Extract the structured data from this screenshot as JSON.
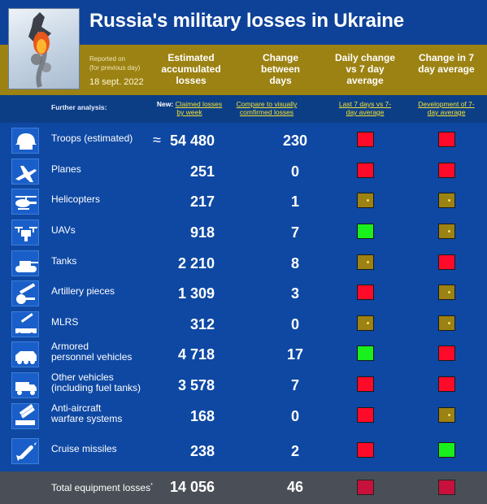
{
  "title": "Russia's military losses in Ukraine",
  "reported": {
    "line1": "Reported on",
    "line2": "(for previous day)",
    "date": "18 sept. 2022"
  },
  "columns": {
    "estimated": "Estimated accumulated losses",
    "change": "Change between days",
    "daily": "Daily change vs 7 day average",
    "change7": "Change in 7 day average"
  },
  "analysis": {
    "label": "Further analysis:",
    "new_prefix": "New:",
    "claimed": "Claimed losses by week",
    "compare": "Compare to visually comfirmed losses",
    "last7": "Last 7 days vs 7-day average",
    "development": "Development of 7-day average"
  },
  "status_colors": {
    "red": "#ff0a28",
    "green": "#19f01c",
    "neutral": "#9c8212",
    "crimson": "#c8103c"
  },
  "rows": [
    {
      "icon": "helmet-icon",
      "label": "Troops (estimated)",
      "approx": "≈",
      "value": "54 480",
      "change": "230",
      "daily": "red",
      "avg": "red"
    },
    {
      "icon": "jet-icon",
      "label": "Planes",
      "value": "251",
      "change": "0",
      "daily": "red",
      "avg": "red"
    },
    {
      "icon": "helicopter-icon",
      "label": "Helicopters",
      "value": "217",
      "change": "1",
      "daily": "neutral",
      "avg": "neutral"
    },
    {
      "icon": "drone-icon",
      "label": "UAVs",
      "value": "918",
      "change": "7",
      "daily": "green",
      "avg": "neutral"
    },
    {
      "icon": "tank-icon",
      "label": "Tanks",
      "value": "2 210",
      "change": "8",
      "daily": "neutral",
      "avg": "red"
    },
    {
      "icon": "artillery-icon",
      "label": "Artillery pieces",
      "value": "1 309",
      "change": "3",
      "daily": "red",
      "avg": "neutral"
    },
    {
      "icon": "rocket-launcher-icon",
      "label": "MLRS",
      "value": "312",
      "change": "0",
      "daily": "neutral",
      "avg": "neutral"
    },
    {
      "icon": "apc-icon",
      "label": "Armored",
      "label2": "personnel vehicles",
      "value": "4 718",
      "change": "17",
      "daily": "green",
      "avg": "red"
    },
    {
      "icon": "truck-icon",
      "label": "Other vehicles",
      "label2": "(including fuel tanks)",
      "value": "3 578",
      "change": "7",
      "daily": "red",
      "avg": "red"
    },
    {
      "icon": "anti-aircraft-icon",
      "label": "Anti-aircraft",
      "label2": "warfare systems",
      "value": "168",
      "change": "0",
      "daily": "red",
      "avg": "neutral"
    },
    {
      "icon": "missile-icon",
      "label": "Cruise missiles",
      "value": "238",
      "change": "2",
      "daily": "red",
      "avg": "green"
    }
  ],
  "total": {
    "label": "Total equipment losses",
    "mark": "*",
    "value": "14 056",
    "change": "46",
    "daily": "crimson",
    "avg": "crimson"
  }
}
